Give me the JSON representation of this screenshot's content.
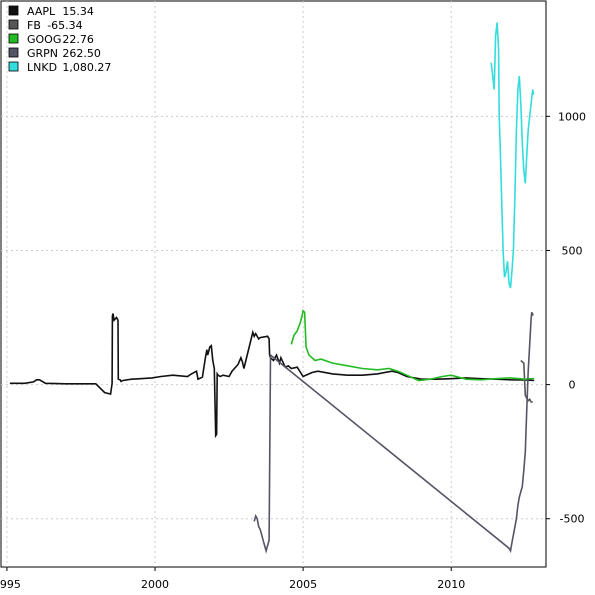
{
  "chart_data": {
    "type": "line",
    "title": "",
    "xlabel": "",
    "ylabel": "",
    "xlim": [
      1994.8,
      2013.2
    ],
    "ylim": [
      -680,
      1430
    ],
    "grid": true,
    "x_ticks": [
      {
        "value": 1995,
        "label": "1995"
      },
      {
        "value": 2000,
        "label": "2000"
      },
      {
        "value": 2005,
        "label": "2005"
      },
      {
        "value": 2010,
        "label": "2010"
      }
    ],
    "y_ticks": [
      {
        "value": -500,
        "label": "-500"
      },
      {
        "value": 0,
        "label": "0"
      },
      {
        "value": 500,
        "label": "500"
      },
      {
        "value": 1000,
        "label": "1000"
      }
    ],
    "y_axis_side": "right",
    "legend_position": "top-left",
    "legend": [
      {
        "ticker": "AAPL",
        "value": "15.34",
        "color": "#111111"
      },
      {
        "ticker": "FB",
        "value": "-65.34",
        "color": "#555555"
      },
      {
        "ticker": "GOOG",
        "value": "22.76",
        "color": "#22bb22"
      },
      {
        "ticker": "GRPN",
        "value": "262.50",
        "color": "#555566"
      },
      {
        "ticker": "LNKD",
        "value": "1,080.27",
        "color": "#33dddd"
      }
    ],
    "series": [
      {
        "name": "AAPL",
        "color": "#111111",
        "x": [
          1995.1,
          1995.6,
          1995.9,
          1996.0,
          1996.1,
          1996.3,
          1997.0,
          1998.0,
          1998.3,
          1998.5,
          1998.55,
          1998.56,
          1998.58,
          1998.62,
          1998.7,
          1998.75,
          1998.76,
          1998.82,
          1998.85,
          1998.9,
          1999.2,
          1999.5,
          1999.9,
          2000.2,
          2000.6,
          2001.1,
          2001.2,
          2001.4,
          2001.45,
          2001.6,
          2001.7,
          2001.75,
          2001.78,
          2001.85,
          2001.9,
          2001.95,
          2002.0,
          2002.05,
          2002.08,
          2002.1,
          2002.13,
          2002.2,
          2002.3,
          2002.5,
          2002.6,
          2002.8,
          2002.9,
          2002.95,
          2003.0,
          2003.3,
          2003.35,
          2003.4,
          2003.5,
          2003.55,
          2003.8,
          2003.85,
          2003.87,
          2003.9,
          2004.0,
          2004.1,
          2004.2,
          2004.25,
          2004.4,
          2004.5,
          2004.6,
          2004.8,
          2005.0,
          2005.3,
          2005.5,
          2006.0,
          2006.5,
          2007.0,
          2007.5,
          2008.0,
          2008.2,
          2008.5,
          2009.0,
          2009.5,
          2010.0,
          2010.5,
          2011.0,
          2011.5,
          2012.0,
          2012.5,
          2012.8
        ],
        "values": [
          5,
          5,
          10,
          18,
          18,
          5,
          3,
          3,
          -30,
          -35,
          5,
          255,
          265,
          240,
          250,
          240,
          20,
          18,
          12,
          15,
          20,
          22,
          25,
          30,
          35,
          30,
          38,
          50,
          20,
          28,
          100,
          130,
          110,
          140,
          145,
          90,
          60,
          -190,
          -185,
          40,
          35,
          30,
          35,
          30,
          50,
          75,
          100,
          85,
          60,
          195,
          180,
          190,
          170,
          175,
          180,
          170,
          110,
          100,
          90,
          110,
          80,
          100,
          65,
          70,
          60,
          65,
          30,
          45,
          50,
          40,
          35,
          35,
          40,
          50,
          45,
          30,
          20,
          20,
          22,
          25,
          22,
          20,
          18,
          17,
          15.34
        ]
      },
      {
        "name": "FB",
        "color": "#555555",
        "x": [
          2012.35,
          2012.4,
          2012.45,
          2012.5,
          2012.55,
          2012.6,
          2012.65,
          2012.7,
          2012.75
        ],
        "values": [
          90,
          85,
          80,
          -40,
          -50,
          -60,
          -55,
          -65,
          -65.34
        ]
      },
      {
        "name": "GOOG",
        "color": "#22bb22",
        "x": [
          2004.6,
          2004.65,
          2004.7,
          2004.8,
          2004.9,
          2004.95,
          2005.0,
          2005.05,
          2005.1,
          2005.2,
          2005.4,
          2005.6,
          2006.0,
          2006.5,
          2007.0,
          2007.5,
          2007.9,
          2008.2,
          2008.5,
          2008.9,
          2009.3,
          2009.7,
          2010.0,
          2010.5,
          2011.0,
          2011.5,
          2012.0,
          2012.5,
          2012.8
        ],
        "values": [
          150,
          170,
          185,
          200,
          230,
          250,
          275,
          270,
          140,
          110,
          90,
          95,
          80,
          70,
          60,
          55,
          60,
          50,
          35,
          15,
          20,
          30,
          35,
          20,
          18,
          22,
          25,
          20,
          22.76
        ]
      },
      {
        "name": "GRPN",
        "color": "#555566",
        "x": [
          2003.35,
          2003.4,
          2003.45,
          2003.5,
          2003.55,
          2003.6,
          2003.65,
          2003.7,
          2003.75,
          2003.8,
          2003.85,
          2003.9,
          2011.95,
          2012.0,
          2012.05,
          2012.1,
          2012.15,
          2012.2,
          2012.25,
          2012.3,
          2012.35,
          2012.4,
          2012.45,
          2012.5,
          2012.55,
          2012.6,
          2012.65,
          2012.7,
          2012.72,
          2012.75,
          2012.78
        ],
        "values": [
          -510,
          -490,
          -500,
          -530,
          -540,
          -560,
          -580,
          -600,
          -620,
          -600,
          -580,
          110,
          -610,
          -620,
          -590,
          -560,
          -530,
          -500,
          -450,
          -420,
          -400,
          -380,
          -320,
          -250,
          -100,
          50,
          150,
          250,
          270,
          260,
          262.5
        ]
      },
      {
        "name": "LNKD",
        "color": "#33dddd",
        "x": [
          2011.35,
          2011.4,
          2011.45,
          2011.5,
          2011.55,
          2011.6,
          2011.62,
          2011.65,
          2011.7,
          2011.75,
          2011.8,
          2011.85,
          2011.9,
          2011.95,
          2012.0,
          2012.05,
          2012.1,
          2012.15,
          2012.2,
          2012.25,
          2012.3,
          2012.35,
          2012.4,
          2012.45,
          2012.5,
          2012.55,
          2012.6,
          2012.65,
          2012.7,
          2012.75,
          2012.78
        ],
        "values": [
          1200,
          1150,
          1100,
          1300,
          1350,
          1250,
          1000,
          900,
          700,
          500,
          400,
          420,
          460,
          380,
          360,
          420,
          500,
          700,
          950,
          1100,
          1150,
          1050,
          900,
          800,
          750,
          850,
          950,
          1000,
          1050,
          1100,
          1080.27
        ]
      }
    ]
  }
}
